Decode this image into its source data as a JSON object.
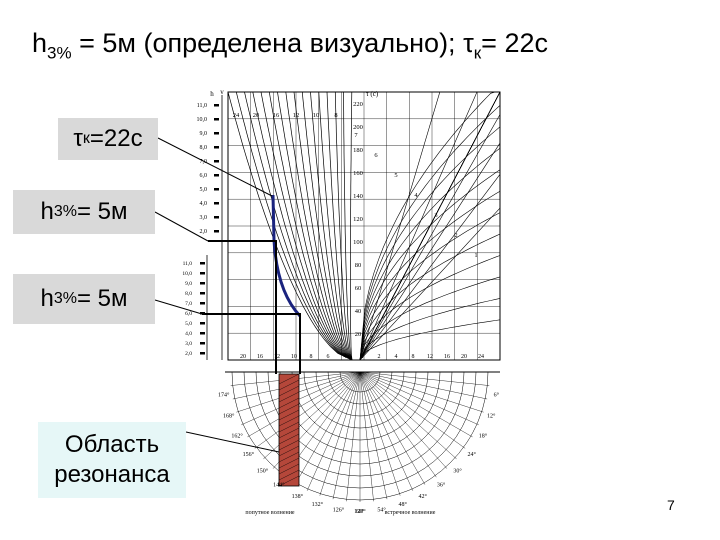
{
  "title": {
    "h_main": "h",
    "h_sub": "3%",
    "rest": " = 5м (определена визуально); ",
    "tau": "τ",
    "tau_sub": "к",
    "tau_val": "= 22с"
  },
  "callouts": {
    "tau": {
      "symbol": "τ",
      "sub": "к",
      "value": "=22с"
    },
    "h1": {
      "symbol": "h",
      "sub": "3%",
      "value": " = 5м"
    },
    "h2": {
      "symbol": "h",
      "sub": "3%",
      "value": " = 5м"
    },
    "resonance": {
      "line1": "Область",
      "line2": "резонанса"
    }
  },
  "nomogram": {
    "top_ticks": [
      "220",
      "200",
      "180",
      "160",
      "140",
      "120",
      "100",
      "80",
      "60",
      "40",
      "20"
    ],
    "left_ticks": [
      "11,0",
      "10,0",
      "9,0",
      "8,0",
      "7,0",
      "6,0",
      "5,0",
      "4,0",
      "3,0",
      "2,0"
    ],
    "left_ticks_2": [
      "11,0",
      "10,0",
      "9,0",
      "8,0",
      "7,0",
      "6,0",
      "5,0",
      "4,0",
      "3,0",
      "2,0"
    ],
    "curve_numbers": [
      "24",
      "20",
      "16",
      "12",
      "10",
      "8",
      "7",
      "6",
      "5",
      "4",
      "3",
      "2",
      "1"
    ],
    "bottom_row": [
      "20",
      "16",
      "12",
      "10",
      "8",
      "6",
      "4",
      "2",
      "2",
      "4",
      "8",
      "12",
      "16",
      "20",
      "24"
    ],
    "angle_left": [
      "174°",
      "168°",
      "162°",
      "156°",
      "150°",
      "144°",
      "138°",
      "132°",
      "126°",
      "120°"
    ],
    "angle_right": [
      "6°",
      "12°",
      "18°",
      "24°",
      "30°",
      "36°",
      "42°",
      "48°",
      "54°",
      "60°"
    ],
    "footer_left": "попутное волнение",
    "footer_right": "встречное волнение",
    "axis_h": "h",
    "axis_tau": "τ (c)",
    "axis_v": "v"
  },
  "page_number": "7",
  "colors": {
    "highlight_curve": "#1a237e",
    "resonance_fill": "#b5473a",
    "callout_gray": "#d9d9d9",
    "callout_aqua": "#e6f7f7"
  }
}
